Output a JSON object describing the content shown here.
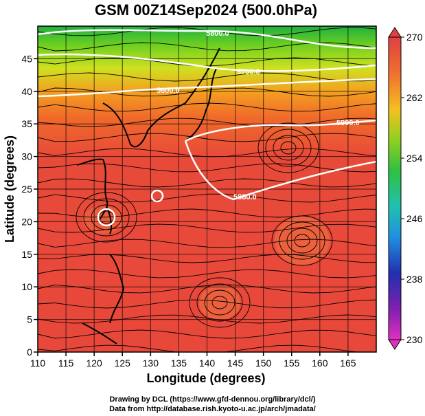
{
  "title": "GSM 00Z14Sep2024 (500.0hPa)",
  "xlabel": "Longitude (degrees)",
  "ylabel": "Latitude  (degrees)",
  "x_ticks": [
    "110",
    "115",
    "120",
    "125",
    "130",
    "135",
    "140",
    "145",
    "150",
    "155",
    "160",
    "165"
  ],
  "y_ticks": [
    "0",
    "5",
    "10",
    "15",
    "20",
    "25",
    "30",
    "35",
    "40",
    "45"
  ],
  "colorbar": {
    "ticks": [
      "270",
      "262",
      "254",
      "246",
      "238",
      "230"
    ],
    "colors": [
      "#e04040",
      "#f07030",
      "#f4a020",
      "#e8d020",
      "#90d020",
      "#30c030",
      "#20c0a0",
      "#2090e0",
      "#2040c0",
      "#3020a0",
      "#8020b0",
      "#e020c0"
    ]
  },
  "contours": [
    {
      "label": "5800.0"
    },
    {
      "label": "5700.0"
    },
    {
      "label": "5600.0"
    },
    {
      "label": "5900.0"
    },
    {
      "label": "5880.0"
    }
  ],
  "footer": {
    "line1": "Drawing by DCL (https://www.gfd-dennou.org/library/dcl/)",
    "line2": "Data from http://database.rish.kyoto-u.ac.jp/arch/jmadata/"
  },
  "chart_data": {
    "type": "heatmap",
    "title": "GSM 00Z14Sep2024 (500.0hPa)",
    "xlabel": "Longitude (degrees)",
    "ylabel": "Latitude  (degrees)",
    "xlim": [
      110,
      170
    ],
    "ylim": [
      0,
      50
    ],
    "colorbar_range": [
      230,
      270
    ],
    "grid": true,
    "legend": "colorbar right"
  }
}
